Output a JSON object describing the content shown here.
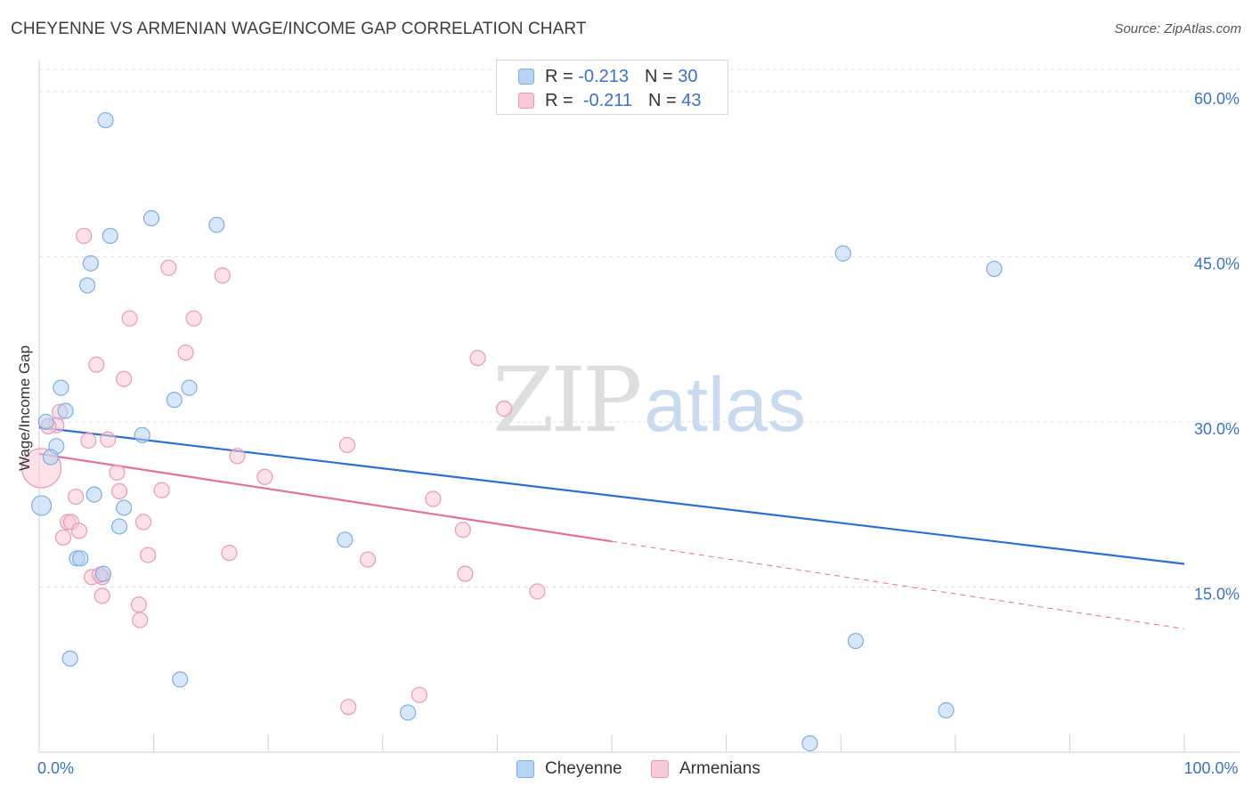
{
  "title": "CHEYENNE VS ARMENIAN WAGE/INCOME GAP CORRELATION CHART",
  "source": "Source: ZipAtlas.com",
  "watermark": {
    "zip": "ZIP",
    "atlas": "atlas"
  },
  "colors": {
    "cheyenne_fill": "#b7d2f3",
    "cheyenne_stroke": "#7faee0",
    "cheyenne_line": "#2d6fd0",
    "armenian_fill": "#f9c8d6",
    "armenian_stroke": "#e99ab4",
    "armenian_line": "#e4709a",
    "grid": "#e2e2e2",
    "tick_label": "#3a72c8"
  },
  "legend": {
    "rows": [
      {
        "r_label": "R =",
        "r_value": "-0.213",
        "n_label": "N =",
        "n_value": "30"
      },
      {
        "r_label": "R =",
        "r_value": "-0.211",
        "n_label": "N =",
        "n_value": "43"
      }
    ]
  },
  "bottom_legend": {
    "cheyenne": "Cheyenne",
    "armenians": "Armenians"
  },
  "chart_data": {
    "type": "scatter",
    "title": "CHEYENNE VS ARMENIAN WAGE/INCOME GAP CORRELATION CHART",
    "xlabel": "",
    "ylabel": "Wage/Income Gap",
    "xlim": [
      0,
      100
    ],
    "ylim": [
      0,
      62.5
    ],
    "x_tick_labels": [
      {
        "value": 0,
        "label": "0.0%"
      },
      {
        "value": 100,
        "label": "100.0%"
      }
    ],
    "y_ticks": [
      {
        "value": 15,
        "label": "15.0%"
      },
      {
        "value": 30,
        "label": "30.0%"
      },
      {
        "value": 45,
        "label": "45.0%"
      },
      {
        "value": 60,
        "label": "60.0%"
      }
    ],
    "x_minor_ticks": [
      10,
      20,
      30,
      40,
      50,
      60,
      70,
      80,
      90,
      100
    ],
    "grid": true,
    "series": [
      {
        "name": "Cheyenne",
        "r": -0.213,
        "n": 30,
        "trend": {
          "x0": 0,
          "y0": 29.5,
          "x1": 100,
          "y1": 17.1,
          "dashed_from": null
        },
        "points": [
          {
            "x": 5.8,
            "y": 57.4
          },
          {
            "x": 9.8,
            "y": 48.5
          },
          {
            "x": 15.5,
            "y": 47.9
          },
          {
            "x": 6.2,
            "y": 46.9
          },
          {
            "x": 4.5,
            "y": 44.4
          },
          {
            "x": 4.2,
            "y": 42.4
          },
          {
            "x": 70.2,
            "y": 45.3
          },
          {
            "x": 83.4,
            "y": 43.9
          },
          {
            "x": 1.9,
            "y": 33.1
          },
          {
            "x": 13.1,
            "y": 33.1
          },
          {
            "x": 11.8,
            "y": 32.0
          },
          {
            "x": 2.3,
            "y": 31.0
          },
          {
            "x": 0.6,
            "y": 30.0
          },
          {
            "x": 9.0,
            "y": 28.8
          },
          {
            "x": 1.5,
            "y": 27.8
          },
          {
            "x": 1.0,
            "y": 26.8
          },
          {
            "x": 4.8,
            "y": 23.4
          },
          {
            "x": 7.4,
            "y": 22.2
          },
          {
            "x": 0.2,
            "y": 22.4
          },
          {
            "x": 7.0,
            "y": 20.5
          },
          {
            "x": 3.3,
            "y": 17.6
          },
          {
            "x": 3.6,
            "y": 17.6
          },
          {
            "x": 5.6,
            "y": 16.2
          },
          {
            "x": 26.7,
            "y": 19.3
          },
          {
            "x": 71.3,
            "y": 10.1
          },
          {
            "x": 2.7,
            "y": 8.5
          },
          {
            "x": 12.3,
            "y": 6.6
          },
          {
            "x": 32.2,
            "y": 3.6
          },
          {
            "x": 79.2,
            "y": 3.8
          },
          {
            "x": 67.3,
            "y": 0.8
          }
        ]
      },
      {
        "name": "Armenians",
        "r": -0.211,
        "n": 43,
        "trend": {
          "x0": 0,
          "y0": 27.1,
          "x1": 100,
          "y1": 11.2,
          "dashed_from": 50
        },
        "points": [
          {
            "x": 0.2,
            "y": 25.8
          },
          {
            "x": 3.9,
            "y": 46.9
          },
          {
            "x": 11.3,
            "y": 44.0
          },
          {
            "x": 16.0,
            "y": 43.3
          },
          {
            "x": 7.9,
            "y": 39.4
          },
          {
            "x": 13.5,
            "y": 39.4
          },
          {
            "x": 12.8,
            "y": 36.3
          },
          {
            "x": 5.0,
            "y": 35.2
          },
          {
            "x": 7.4,
            "y": 33.9
          },
          {
            "x": 38.3,
            "y": 35.8
          },
          {
            "x": 40.6,
            "y": 31.2
          },
          {
            "x": 1.8,
            "y": 30.9
          },
          {
            "x": 1.5,
            "y": 29.7
          },
          {
            "x": 0.8,
            "y": 29.6
          },
          {
            "x": 4.3,
            "y": 28.3
          },
          {
            "x": 6.0,
            "y": 28.4
          },
          {
            "x": 26.9,
            "y": 27.9
          },
          {
            "x": 17.3,
            "y": 26.9
          },
          {
            "x": 6.8,
            "y": 25.4
          },
          {
            "x": 19.7,
            "y": 25.0
          },
          {
            "x": 10.7,
            "y": 23.8
          },
          {
            "x": 7.0,
            "y": 23.7
          },
          {
            "x": 3.2,
            "y": 23.2
          },
          {
            "x": 34.4,
            "y": 23.0
          },
          {
            "x": 2.5,
            "y": 20.9
          },
          {
            "x": 2.8,
            "y": 20.9
          },
          {
            "x": 9.1,
            "y": 20.9
          },
          {
            "x": 3.5,
            "y": 20.1
          },
          {
            "x": 37.0,
            "y": 20.2
          },
          {
            "x": 2.1,
            "y": 19.5
          },
          {
            "x": 9.5,
            "y": 17.9
          },
          {
            "x": 16.6,
            "y": 18.1
          },
          {
            "x": 28.7,
            "y": 17.5
          },
          {
            "x": 4.6,
            "y": 15.9
          },
          {
            "x": 5.5,
            "y": 15.9
          },
          {
            "x": 37.2,
            "y": 16.2
          },
          {
            "x": 5.5,
            "y": 14.2
          },
          {
            "x": 43.5,
            "y": 14.6
          },
          {
            "x": 8.7,
            "y": 13.4
          },
          {
            "x": 8.8,
            "y": 12.0
          },
          {
            "x": 33.2,
            "y": 5.2
          },
          {
            "x": 27.0,
            "y": 4.1
          },
          {
            "x": 5.3,
            "y": 16.1
          }
        ]
      }
    ]
  }
}
